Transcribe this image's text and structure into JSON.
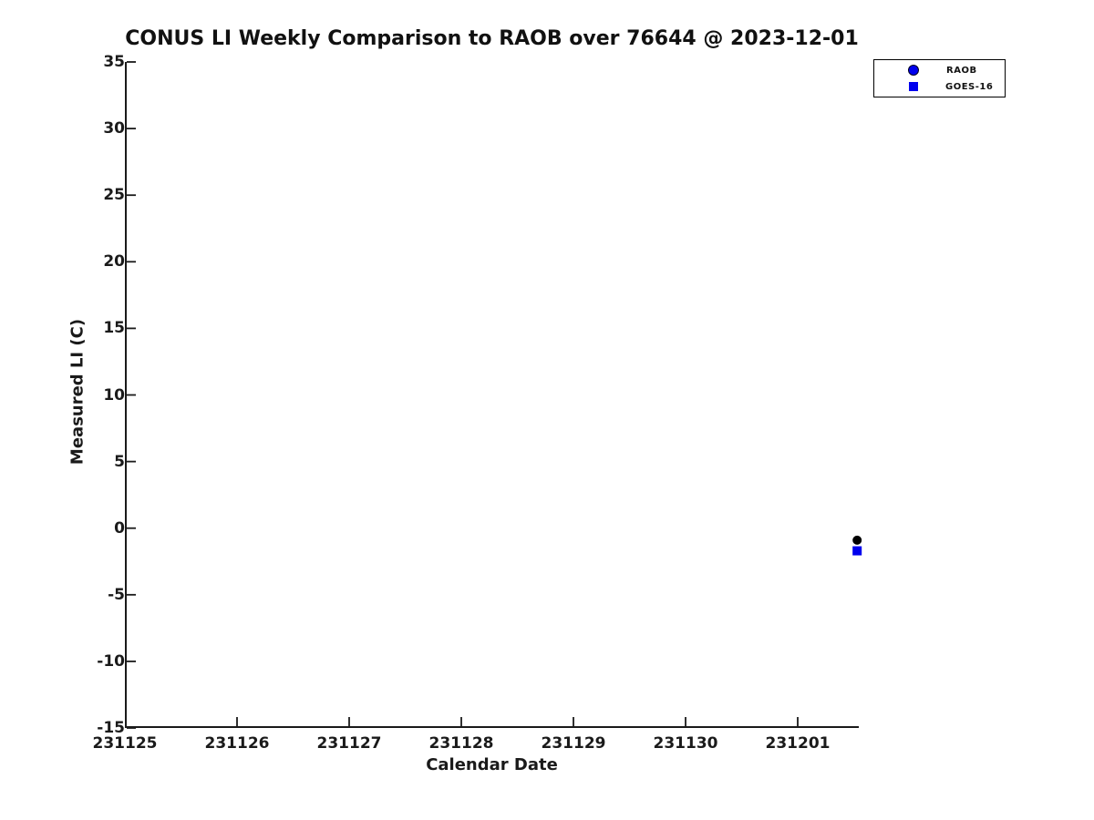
{
  "chart_data": {
    "type": "scatter",
    "title": "CONUS LI Weekly Comparison to RAOB over 76644 @ 2023-12-01",
    "xlabel": "Calendar Date",
    "ylabel": "Measured LI (C)",
    "ylim": [
      -15,
      35
    ],
    "y_ticks": [
      35,
      30,
      25,
      20,
      15,
      10,
      5,
      0,
      -5,
      -10,
      -15
    ],
    "x_tick_labels": [
      "231125",
      "231126",
      "231127",
      "231128",
      "231129",
      "231130",
      "231201"
    ],
    "x_day_range": [
      0,
      6.545
    ],
    "grid": false,
    "legend_position": "top-right-outside",
    "series": [
      {
        "name": "RAOB",
        "marker": "circle",
        "marker_color": "#000000",
        "legend_marker_color": "#0000ee",
        "points": [
          {
            "date": "231201",
            "day": 6.53,
            "value": -0.9
          }
        ]
      },
      {
        "name": "GOES-16",
        "marker": "square",
        "marker_color": "#0000ee",
        "legend_marker_color": "#0000ee",
        "points": [
          {
            "date": "231201",
            "day": 6.53,
            "value": -1.7
          }
        ]
      }
    ]
  },
  "colors": {
    "text": "#1a1a1a",
    "axis": "#1a1a1a",
    "marker_blue": "#0000ee",
    "marker_black": "#000000",
    "background": "#ffffff"
  }
}
